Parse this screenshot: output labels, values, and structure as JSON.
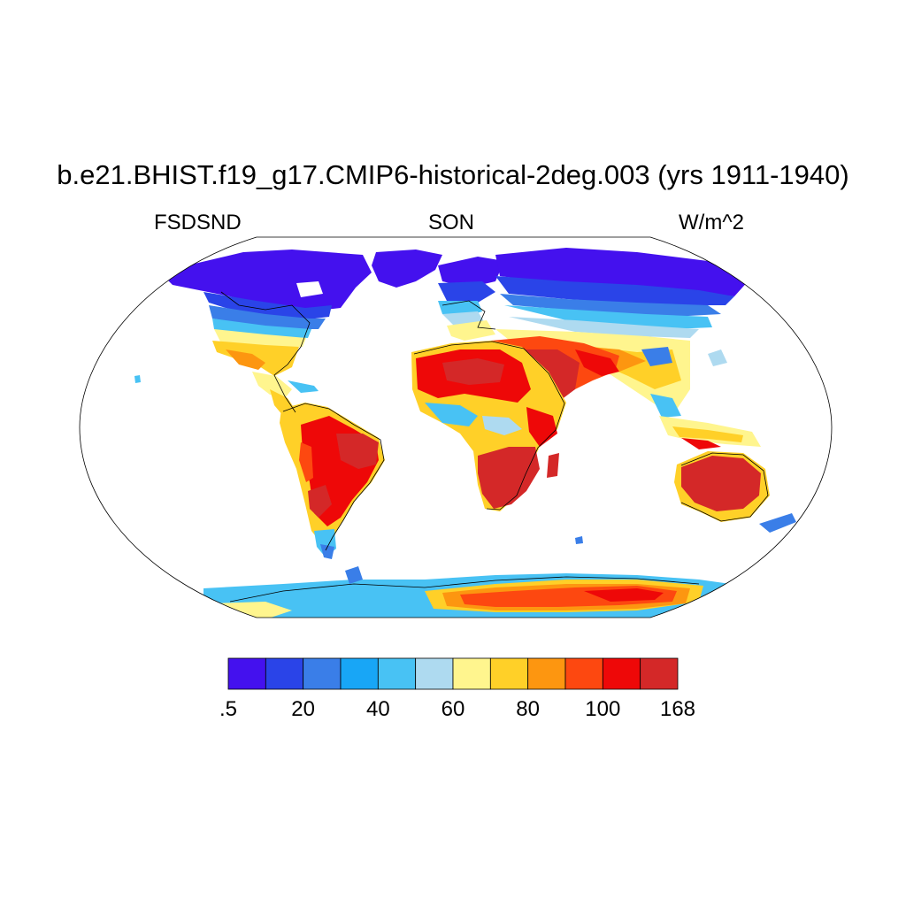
{
  "title": "b.e21.BHIST.f19_g17.CMIP6-historical-2deg.003 (yrs 1911-1940)",
  "left_string": "FSDSND",
  "center_string": "SON",
  "right_string": "W/m^2",
  "projection": "Robinson",
  "colorbar": {
    "orientation": "horizontal",
    "colors": [
      "#4411ee",
      "#2a44e8",
      "#3a7ee8",
      "#18a6f6",
      "#48c2f4",
      "#aedaf0",
      "#fff58e",
      "#ffd028",
      "#fd9610",
      "#fd4810",
      "#ee0808",
      "#d42828"
    ],
    "labels": [
      ".5",
      "20",
      "40",
      "60",
      "80",
      "100",
      "168"
    ]
  }
}
